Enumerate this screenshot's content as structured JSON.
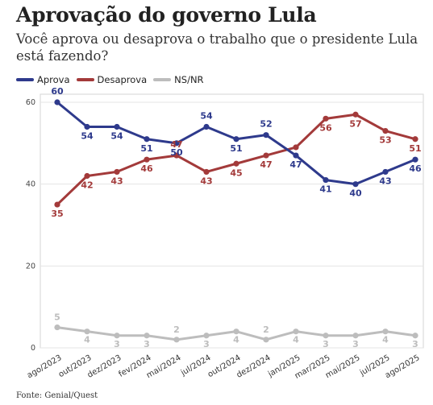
{
  "title": "Aprovação do governo Lula",
  "subtitle": "Você aprova ou desaprova o trabalho que o presidente Lula está fazendo?",
  "source": "Fonte: Genial/Quest",
  "chart_data": {
    "type": "line",
    "title": "Aprovação do governo Lula",
    "xlabel": "",
    "ylabel": "",
    "ylim": [
      0,
      60
    ],
    "yticks": [
      0,
      20,
      40,
      60
    ],
    "grid": true,
    "legend_position": "top-left",
    "categories": [
      "ago/2023",
      "out/2023",
      "dez/2023",
      "fev/2024",
      "mai/2024",
      "jul/2024",
      "out/2024",
      "dez/2024",
      "jan/2025",
      "mar/2025",
      "mai/2025",
      "jul/2025",
      "ago/2025"
    ],
    "series": [
      {
        "name": "Aprova",
        "color": "#2e3a8c",
        "values": [
          60,
          54,
          54,
          51,
          50,
          54,
          51,
          52,
          47,
          41,
          40,
          43,
          46
        ]
      },
      {
        "name": "Desaprova",
        "color": "#a33a3a",
        "values": [
          35,
          42,
          43,
          46,
          47,
          43,
          45,
          47,
          49,
          56,
          57,
          53,
          51
        ]
      },
      {
        "name": "NS/NR",
        "color": "#bdbdbd",
        "values": [
          5,
          4,
          3,
          3,
          2,
          3,
          4,
          2,
          4,
          3,
          3,
          4,
          3
        ]
      }
    ],
    "data_labels": {
      "Aprova": [
        60,
        54,
        54,
        51,
        50,
        54,
        51,
        52,
        47,
        41,
        40,
        43,
        46
      ],
      "Desaprova": [
        35,
        42,
        43,
        46,
        47,
        43,
        45,
        47,
        null,
        56,
        57,
        53,
        51
      ],
      "NS/NR": [
        5,
        4,
        3,
        3,
        2,
        3,
        4,
        2,
        4,
        3,
        3,
        4,
        3
      ]
    }
  }
}
